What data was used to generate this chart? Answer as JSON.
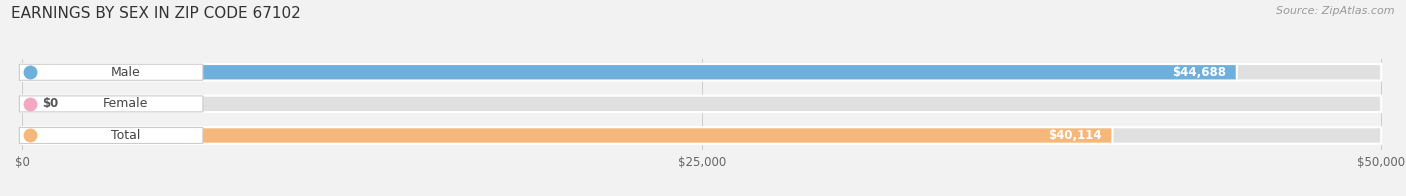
{
  "title": "EARNINGS BY SEX IN ZIP CODE 67102",
  "source": "Source: ZipAtlas.com",
  "categories": [
    "Male",
    "Female",
    "Total"
  ],
  "values": [
    44688,
    0,
    40114
  ],
  "max_value": 50000,
  "bar_colors": [
    "#6eb0dc",
    "#f4a8c0",
    "#f5b87a"
  ],
  "value_labels": [
    "$44,688",
    "$0",
    "$40,114"
  ],
  "x_ticks": [
    0,
    25000,
    50000
  ],
  "x_tick_labels": [
    "$0",
    "$25,000",
    "$50,000"
  ],
  "background_color": "#f2f2f2",
  "bar_bg_color": "#e0e0e0",
  "title_fontsize": 11,
  "source_fontsize": 8,
  "label_fontsize": 9,
  "value_fontsize": 8.5
}
